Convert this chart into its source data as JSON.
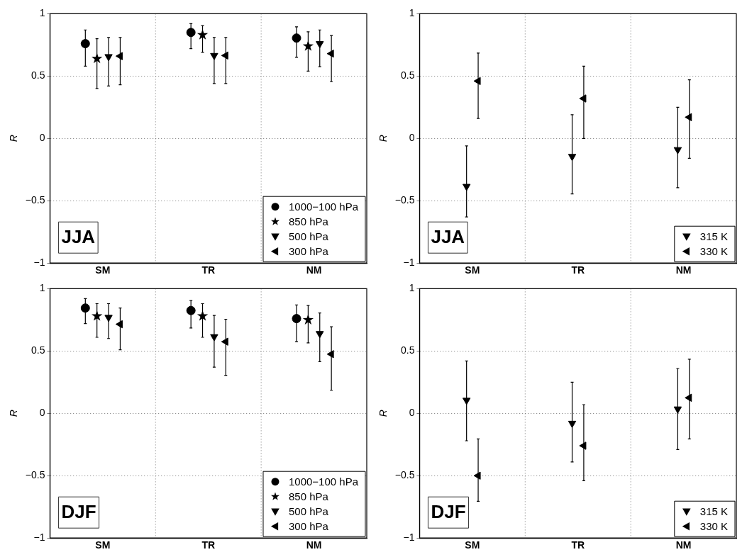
{
  "chart_data": [
    {
      "type": "scatter",
      "categories": [
        "SM",
        "TR",
        "NM"
      ],
      "ylabel": "R",
      "ylim": [
        -1,
        1
      ],
      "yticks": [
        -1,
        -0.5,
        0,
        0.5,
        1
      ],
      "grid": true,
      "legend": "bottom right",
      "annotations": [
        "JJA"
      ],
      "series": [
        {
          "name": "1000−100 hPa",
          "color": "#000000",
          "marker": "circle",
          "values": [
            0.76,
            0.85,
            0.805
          ],
          "errors": [
            [
              0.58,
              0.87
            ],
            [
              0.72,
              0.92
            ],
            [
              0.65,
              0.895
            ]
          ]
        },
        {
          "name": "850 hPa",
          "color": "#000000",
          "marker": "star",
          "values": [
            0.64,
            0.83,
            0.74
          ],
          "errors": [
            [
              0.4,
              0.8
            ],
            [
              0.69,
              0.905
            ],
            [
              0.54,
              0.855
            ]
          ]
        },
        {
          "name": "500 hPa",
          "color": "#000000",
          "marker": "triangle",
          "values": [
            0.656,
            0.665,
            0.76
          ],
          "errors": [
            [
              0.42,
              0.81
            ],
            [
              0.44,
              0.81
            ],
            [
              0.575,
              0.87
            ]
          ]
        },
        {
          "name": "300 hPa",
          "color": "#000000",
          "marker": "triangle",
          "values": [
            0.66,
            0.665,
            0.68
          ],
          "errors": [
            [
              0.43,
              0.81
            ],
            [
              0.44,
              0.81
            ],
            [
              0.455,
              0.825
            ]
          ]
        }
      ]
    },
    {
      "type": "scatter",
      "categories": [
        "SM",
        "TR",
        "NM"
      ],
      "ylabel": "R",
      "ylim": [
        -1,
        1
      ],
      "yticks": [
        -1,
        -0.5,
        0,
        0.5,
        1
      ],
      "grid": true,
      "legend": "bottom right",
      "annotations": [
        "JJA"
      ],
      "series": [
        {
          "name": "315 K",
          "color": "#000000",
          "marker": "triangle",
          "values": [
            -0.385,
            -0.145,
            -0.09
          ],
          "errors": [
            [
              -0.63,
              -0.06
            ],
            [
              -0.445,
              0.19
            ],
            [
              -0.395,
              0.25
            ]
          ]
        },
        {
          "name": "330 K",
          "color": "#000000",
          "marker": "triangle",
          "values": [
            0.46,
            0.32,
            0.17
          ],
          "errors": [
            [
              0.16,
              0.685
            ],
            [
              0.0,
              0.58
            ],
            [
              -0.16,
              0.47
            ]
          ]
        }
      ]
    },
    {
      "type": "scatter",
      "categories": [
        "SM",
        "TR",
        "NM"
      ],
      "ylabel": "R",
      "ylim": [
        -1,
        1
      ],
      "yticks": [
        -1,
        -0.5,
        0,
        0.5,
        1
      ],
      "grid": true,
      "legend": "bottom right",
      "annotations": [
        "DJF"
      ],
      "series": [
        {
          "name": "1000−100 hPa",
          "color": "#000000",
          "marker": "circle",
          "values": [
            0.845,
            0.825,
            0.76
          ],
          "errors": [
            [
              0.72,
              0.92
            ],
            [
              0.685,
              0.905
            ],
            [
              0.575,
              0.87
            ]
          ]
        },
        {
          "name": "850 hPa",
          "color": "#000000",
          "marker": "star",
          "values": [
            0.78,
            0.78,
            0.75
          ],
          "errors": [
            [
              0.61,
              0.88
            ],
            [
              0.61,
              0.88
            ],
            [
              0.565,
              0.865
            ]
          ]
        },
        {
          "name": "500 hPa",
          "color": "#000000",
          "marker": "triangle",
          "values": [
            0.77,
            0.615,
            0.64
          ],
          "errors": [
            [
              0.6,
              0.88
            ],
            [
              0.37,
              0.785
            ],
            [
              0.415,
              0.805
            ]
          ]
        },
        {
          "name": "300 hPa",
          "color": "#000000",
          "marker": "triangle",
          "values": [
            0.715,
            0.575,
            0.475
          ],
          "errors": [
            [
              0.51,
              0.845
            ],
            [
              0.305,
              0.755
            ],
            [
              0.185,
              0.695
            ]
          ]
        }
      ]
    },
    {
      "type": "scatter",
      "categories": [
        "SM",
        "TR",
        "NM"
      ],
      "ylabel": "R",
      "ylim": [
        -1,
        1
      ],
      "yticks": [
        -1,
        -0.5,
        0,
        0.5,
        1
      ],
      "grid": true,
      "legend": "bottom right",
      "annotations": [
        "DJF"
      ],
      "series": [
        {
          "name": "315 K",
          "color": "#000000",
          "marker": "triangle",
          "values": [
            0.105,
            -0.08,
            0.035
          ],
          "errors": [
            [
              -0.22,
              0.42
            ],
            [
              -0.39,
              0.25
            ],
            [
              -0.29,
              0.36
            ]
          ]
        },
        {
          "name": "330 K",
          "color": "#000000",
          "marker": "triangle",
          "values": [
            -0.5,
            -0.26,
            0.125
          ],
          "errors": [
            [
              -0.705,
              -0.205
            ],
            [
              -0.54,
              0.07
            ],
            [
              -0.205,
              0.435
            ]
          ]
        }
      ]
    }
  ]
}
